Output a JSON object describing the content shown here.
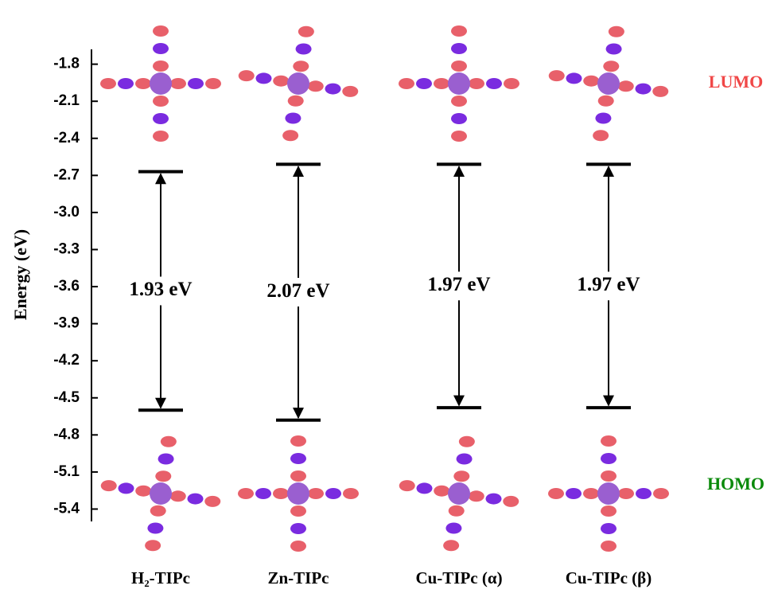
{
  "chart_data": {
    "type": "energy-level",
    "y_label": "Energy (eV)",
    "categories": [
      "H₂-TIPc",
      "Zn-TIPc",
      "Cu-TIPc (α)",
      "Cu-TIPc (β)"
    ],
    "series": [
      {
        "name": "LUMO",
        "color": "#f04848",
        "values": [
          -2.67,
          -2.61,
          -2.61,
          -2.61
        ]
      },
      {
        "name": "HOMO",
        "color": "#0a8a0a",
        "values": [
          -4.6,
          -4.68,
          -4.58,
          -4.58
        ]
      }
    ],
    "gaps": {
      "values": [
        1.93,
        2.07,
        1.97,
        1.97
      ],
      "value_labels": [
        "1.93 eV",
        "2.07 eV",
        "1.97 eV",
        "1.97 eV"
      ]
    },
    "ylim": [
      -5.5,
      -1.68
    ],
    "yticks": [
      -1.8,
      -2.1,
      -2.4,
      -2.7,
      {
        "value": -3,
        "label": "-3.0"
      },
      -3.3,
      -3.6,
      -3.9,
      -4.2,
      -4.5,
      -4.8,
      -5.1,
      -5.4
    ]
  }
}
